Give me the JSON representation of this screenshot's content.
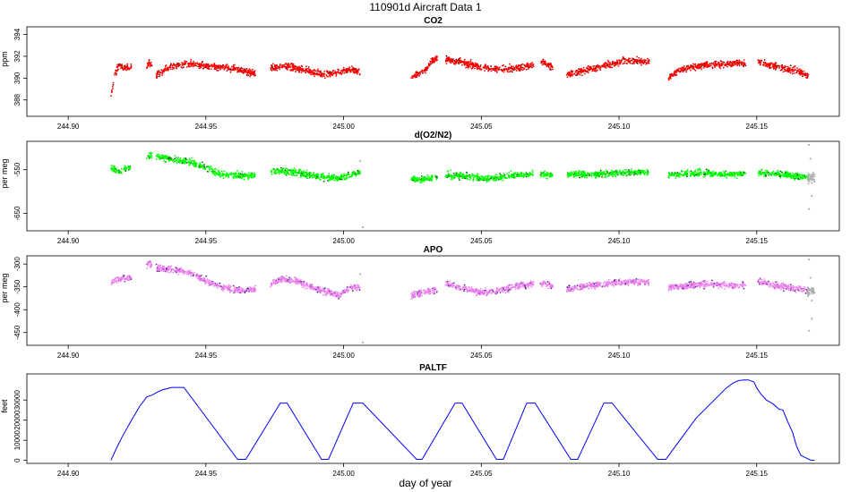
{
  "figure": {
    "title": "110901d   Aircraft Data 1",
    "xlabel": "day of year"
  },
  "chart_data": [
    {
      "type": "scatter",
      "title": "CO2",
      "ylabel": "ppm",
      "xlim": [
        244.885,
        245.18
      ],
      "ylim": [
        386.5,
        394.7
      ],
      "xticks": [
        244.9,
        244.95,
        245.0,
        245.05,
        245.1,
        245.15
      ],
      "xtick_labels": [
        "244.90",
        "244.95",
        "245.00",
        "245.05",
        "245.10",
        "245.15"
      ],
      "yticks": [
        388,
        390,
        392,
        394
      ],
      "ytick_labels": [
        "388",
        "390",
        "392",
        "394"
      ],
      "colors": {
        "main": "#ff0000",
        "shadow": "#7a0000"
      },
      "series": [
        {
          "segments": [
            {
              "x": [
                244.9155,
                244.917,
                244.9185,
                244.92,
                244.9215,
                244.923
              ],
              "y": [
                388.2,
                390.4,
                391.2,
                390.9,
                391.1,
                390.9
              ]
            },
            {
              "x": [
                244.9285,
                244.9295,
                244.9305
              ],
              "y": [
                391.0,
                391.4,
                391.2
              ]
            },
            {
              "x": [
                244.932,
                244.936,
                244.94,
                244.945,
                244.95,
                244.955,
                244.96,
                244.965,
                244.968
              ],
              "y": [
                390.3,
                390.9,
                391.2,
                391.3,
                391.1,
                391.0,
                390.9,
                390.6,
                390.4
              ]
            },
            {
              "x": [
                244.9735,
                244.978,
                244.983,
                244.988,
                244.993,
                244.998,
                245.003,
                245.006
              ],
              "y": [
                390.9,
                391.1,
                390.9,
                390.6,
                390.3,
                390.6,
                390.8,
                390.5
              ]
            },
            {
              "x": [
                245.0245,
                245.027,
                245.03,
                245.032,
                245.034
              ],
              "y": [
                390.0,
                390.4,
                390.8,
                391.6,
                391.8
              ]
            },
            {
              "x": [
                245.037,
                245.042,
                245.047,
                245.052,
                245.057,
                245.062,
                245.067,
                245.069
              ],
              "y": [
                391.7,
                391.5,
                391.2,
                390.9,
                390.8,
                390.9,
                391.1,
                391.2
              ]
            },
            {
              "x": [
                245.0715,
                245.073,
                245.0745,
                245.076
              ],
              "y": [
                391.4,
                391.5,
                391.2,
                391.0
              ]
            },
            {
              "x": [
                245.081,
                245.086,
                245.091,
                245.096,
                245.101,
                245.106,
                245.111
              ],
              "y": [
                390.3,
                390.6,
                390.9,
                391.2,
                391.5,
                391.6,
                391.5
              ]
            },
            {
              "x": [
                245.118,
                245.123,
                245.128,
                245.133,
                245.138,
                245.143,
                245.146
              ],
              "y": [
                390.1,
                390.8,
                391.1,
                391.2,
                391.3,
                391.4,
                391.3
              ]
            },
            {
              "x": [
                245.1505,
                245.155,
                245.16,
                245.165,
                245.169
              ],
              "y": [
                391.5,
                391.2,
                390.9,
                390.6,
                390.2
              ]
            }
          ]
        }
      ]
    },
    {
      "type": "scatter",
      "title": "d(O2/N2)",
      "ylabel": "per meg",
      "xlim": [
        244.885,
        245.18
      ],
      "ylim": [
        -690,
        -485
      ],
      "xticks": [
        244.9,
        244.95,
        245.0,
        245.05,
        245.1,
        245.15
      ],
      "xtick_labels": [
        "244.90",
        "244.95",
        "245.00",
        "245.05",
        "245.10",
        "245.15"
      ],
      "yticks": [
        -550,
        -650
      ],
      "ytick_labels": [
        "-550",
        "-650"
      ],
      "colors": {
        "main": "#00ff00",
        "shadow": "#005f00",
        "outlier": "#b0b0b0"
      },
      "series": [
        {
          "segments": [
            {
              "x": [
                244.9155,
                244.917,
                244.9185,
                244.92,
                244.9215,
                244.923
              ],
              "y": [
                -545,
                -551,
                -553,
                -550,
                -546,
                -544
              ]
            },
            {
              "x": [
                244.9285,
                244.9295,
                244.9305
              ],
              "y": [
                -522,
                -518,
                -520
              ]
            },
            {
              "x": [
                244.932,
                244.936,
                244.94,
                244.945,
                244.95,
                244.955,
                244.96,
                244.965,
                244.968
              ],
              "y": [
                -518,
                -525,
                -529,
                -534,
                -545,
                -560,
                -562,
                -564,
                -561
              ]
            },
            {
              "x": [
                244.9735,
                244.978,
                244.983,
                244.988,
                244.993,
                244.998,
                245.003,
                245.006
              ],
              "y": [
                -554,
                -553,
                -557,
                -562,
                -567,
                -570,
                -561,
                -557
              ]
            },
            {
              "x": [
                245.0245,
                245.027,
                245.03,
                245.032,
                245.034
              ],
              "y": [
                -571,
                -573,
                -571,
                -568,
                -566
              ]
            },
            {
              "x": [
                245.037,
                245.042,
                245.047,
                245.052,
                245.057,
                245.062,
                245.067,
                245.069
              ],
              "y": [
                -562,
                -563,
                -567,
                -570,
                -567,
                -564,
                -561,
                -560
              ]
            },
            {
              "x": [
                245.0715,
                245.073,
                245.0745,
                245.076
              ],
              "y": [
                -563,
                -560,
                -562,
                -565
              ]
            },
            {
              "x": [
                245.081,
                245.086,
                245.091,
                245.096,
                245.101,
                245.106,
                245.111
              ],
              "y": [
                -562,
                -561,
                -560,
                -559,
                -557,
                -556,
                -556
              ]
            },
            {
              "x": [
                245.118,
                245.123,
                245.128,
                245.133,
                245.138,
                245.143,
                245.146
              ],
              "y": [
                -562,
                -560,
                -558,
                -558,
                -560,
                -561,
                -560
              ]
            },
            {
              "x": [
                245.1505,
                245.155,
                245.16,
                245.165,
                245.169
              ],
              "y": [
                -556,
                -558,
                -561,
                -565,
                -568
              ]
            }
          ]
        }
      ],
      "outliers": {
        "x": [
          245.006,
          245.007,
          245.169,
          245.1695,
          245.17,
          245.169,
          245.17
        ],
        "y": [
          -530,
          -682,
          -493,
          -525,
          -610,
          -640,
          -580
        ]
      }
    },
    {
      "type": "scatter",
      "title": "APO",
      "ylabel": "per meg",
      "xlim": [
        244.885,
        245.18
      ],
      "ylim": [
        -478,
        -282
      ],
      "xticks": [
        244.9,
        244.95,
        245.0,
        245.05,
        245.1,
        245.15
      ],
      "xtick_labels": [
        "244.90",
        "244.95",
        "245.00",
        "245.05",
        "245.10",
        "245.15"
      ],
      "yticks": [
        -300,
        -350,
        -400,
        -450
      ],
      "ytick_labels": [
        "-300",
        "-350",
        "-400",
        "-450"
      ],
      "colors": {
        "main": "#ee82ee",
        "shadow": "#5a1a9a",
        "outlier": "#b0b0b0"
      },
      "series": [
        {
          "segments": [
            {
              "x": [
                244.9155,
                244.917,
                244.9185,
                244.92,
                244.9215,
                244.923
              ],
              "y": [
                -342,
                -336,
                -333,
                -330,
                -333,
                -331
              ]
            },
            {
              "x": [
                244.9285,
                244.9295,
                244.9305
              ],
              "y": [
                -303,
                -299,
                -301
              ]
            },
            {
              "x": [
                244.932,
                244.936,
                244.94,
                244.945,
                244.95,
                244.955,
                244.96,
                244.965,
                244.968
              ],
              "y": [
                -307,
                -312,
                -314,
                -320,
                -336,
                -350,
                -356,
                -358,
                -355
              ]
            },
            {
              "x": [
                244.9735,
                244.978,
                244.983,
                244.988,
                244.993,
                244.998,
                245.003,
                245.006
              ],
              "y": [
                -345,
                -332,
                -338,
                -350,
                -359,
                -368,
                -350,
                -352
              ]
            },
            {
              "x": [
                245.0245,
                245.027,
                245.03,
                245.032,
                245.034
              ],
              "y": [
                -368,
                -365,
                -362,
                -358,
                -355
              ]
            },
            {
              "x": [
                245.037,
                245.042,
                245.047,
                245.052,
                245.057,
                245.062,
                245.067,
                245.069
              ],
              "y": [
                -344,
                -350,
                -358,
                -362,
                -357,
                -349,
                -345,
                -343
              ]
            },
            {
              "x": [
                245.0715,
                245.073,
                245.0745,
                245.076
              ],
              "y": [
                -344,
                -342,
                -346,
                -348
              ]
            },
            {
              "x": [
                245.081,
                245.086,
                245.091,
                245.096,
                245.101,
                245.106,
                245.111
              ],
              "y": [
                -356,
                -350,
                -346,
                -342,
                -340,
                -339,
                -340
              ]
            },
            {
              "x": [
                245.118,
                245.123,
                245.128,
                245.133,
                245.138,
                245.143,
                245.146
              ],
              "y": [
                -353,
                -348,
                -345,
                -344,
                -346,
                -347,
                -345
              ]
            },
            {
              "x": [
                245.1505,
                245.155,
                245.16,
                245.165,
                245.169
              ],
              "y": [
                -338,
                -344,
                -350,
                -355,
                -360
              ]
            }
          ]
        }
      ],
      "outliers": {
        "x": [
          245.006,
          245.007,
          245.169,
          245.1695,
          245.17,
          245.169,
          245.17
        ],
        "y": [
          -322,
          -472,
          -290,
          -330,
          -420,
          -446,
          -380
        ]
      }
    },
    {
      "type": "line",
      "title": "PALTF",
      "ylabel": "feet",
      "xlim": [
        244.885,
        245.18
      ],
      "ylim": [
        -1500,
        43000
      ],
      "xticks": [
        244.9,
        244.95,
        245.0,
        245.05,
        245.1,
        245.15
      ],
      "xtick_labels": [
        "244.90",
        "244.95",
        "245.00",
        "245.05",
        "245.10",
        "245.15"
      ],
      "yticks": [
        0,
        10000,
        20000,
        30000
      ],
      "ytick_labels": [
        "0",
        "10000",
        "20000",
        "30000"
      ],
      "colors": {
        "main": "#0000ff"
      },
      "series": [
        {
          "x": [
            244.9155,
            244.917,
            244.9195,
            244.923,
            244.926,
            244.9285,
            244.9305,
            244.9325,
            244.934,
            244.936,
            244.9375,
            244.9385,
            244.939,
            244.942,
            244.9615,
            244.9645,
            244.977,
            244.9795,
            244.992,
            244.9945,
            245.0035,
            245.007,
            245.0265,
            245.0285,
            245.0405,
            245.043,
            245.0555,
            245.058,
            245.0665,
            245.0695,
            245.0825,
            245.085,
            245.0945,
            245.0975,
            245.114,
            245.117,
            245.128,
            245.139,
            245.1415,
            245.1435,
            245.1455,
            245.147,
            245.149,
            245.15,
            245.1515,
            245.1535,
            245.156,
            245.158,
            245.1595,
            245.161,
            245.163,
            245.1645,
            245.166,
            245.1675,
            245.1695,
            245.171
          ],
          "y": [
            0,
            4500,
            11500,
            20000,
            27000,
            31500,
            32500,
            34000,
            35000,
            35700,
            36200,
            36300,
            36300,
            36300,
            500,
            500,
            28500,
            28500,
            500,
            500,
            28500,
            28500,
            500,
            500,
            28500,
            28500,
            500,
            500,
            28500,
            28500,
            500,
            500,
            28500,
            28500,
            500,
            500,
            21000,
            36000,
            38500,
            39700,
            40000,
            40000,
            39000,
            36000,
            33000,
            30000,
            28000,
            25500,
            25000,
            20000,
            14000,
            7000,
            2500,
            1500,
            200,
            0
          ]
        }
      ]
    }
  ]
}
